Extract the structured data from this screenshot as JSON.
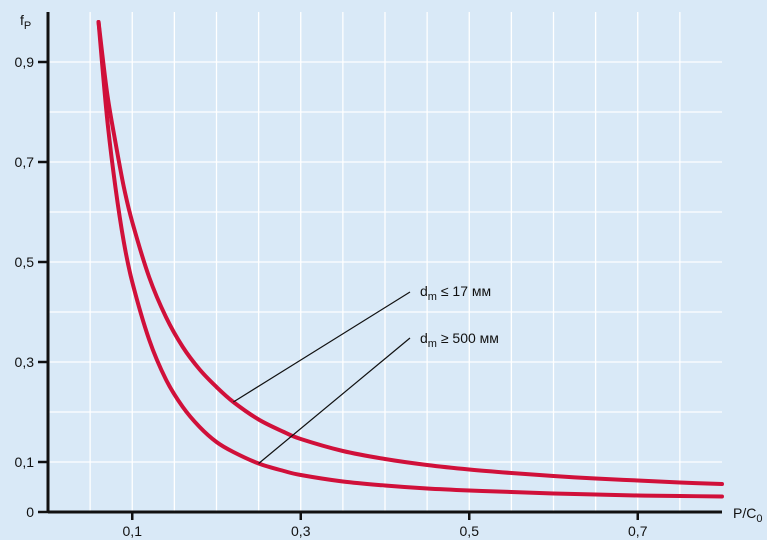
{
  "colors": {
    "background": "#d9e9f7",
    "grid": "#ffffff",
    "axis": "#111111",
    "curve": "#d0103a",
    "leader": "#111111"
  },
  "chart_data": {
    "type": "line",
    "title": "",
    "ylabel": {
      "main": "f",
      "sub": "P"
    },
    "xlabel": {
      "main": "P/C",
      "sub": "0"
    },
    "xlim": [
      0,
      0.8
    ],
    "ylim": [
      0,
      1.0
    ],
    "grid": true,
    "x_ticks": [
      {
        "value": 0.1,
        "label": "0,1"
      },
      {
        "value": 0.3,
        "label": "0,3"
      },
      {
        "value": 0.5,
        "label": "0,5"
      },
      {
        "value": 0.7,
        "label": "0,7"
      }
    ],
    "y_ticks": [
      {
        "value": 0.0,
        "label": "0"
      },
      {
        "value": 0.1,
        "label": "0,1"
      },
      {
        "value": 0.3,
        "label": "0,3"
      },
      {
        "value": 0.5,
        "label": "0,5"
      },
      {
        "value": 0.7,
        "label": "0,7"
      },
      {
        "value": 0.9,
        "label": "0,9"
      }
    ],
    "series": [
      {
        "label_main": "d",
        "label_sub": "m",
        "label_rest": " ≤ 17 мм",
        "x": [
          0.06,
          0.07,
          0.08,
          0.09,
          0.1,
          0.12,
          0.14,
          0.16,
          0.18,
          0.2,
          0.22,
          0.25,
          0.28,
          0.3,
          0.35,
          0.4,
          0.45,
          0.5,
          0.55,
          0.6,
          0.65,
          0.7,
          0.75,
          0.8
        ],
        "y": [
          0.98,
          0.84,
          0.74,
          0.65,
          0.58,
          0.47,
          0.39,
          0.33,
          0.285,
          0.25,
          0.22,
          0.185,
          0.16,
          0.146,
          0.122,
          0.106,
          0.094,
          0.085,
          0.078,
          0.072,
          0.067,
          0.063,
          0.059,
          0.056
        ]
      },
      {
        "label_main": "d",
        "label_sub": "m",
        "label_rest": " ≥ 500 мм",
        "x": [
          0.06,
          0.07,
          0.08,
          0.09,
          0.1,
          0.12,
          0.14,
          0.16,
          0.18,
          0.2,
          0.22,
          0.25,
          0.28,
          0.3,
          0.35,
          0.4,
          0.45,
          0.5,
          0.55,
          0.6,
          0.65,
          0.7,
          0.75,
          0.8
        ],
        "y": [
          0.98,
          0.79,
          0.65,
          0.54,
          0.46,
          0.345,
          0.265,
          0.21,
          0.17,
          0.14,
          0.12,
          0.097,
          0.082,
          0.074,
          0.061,
          0.053,
          0.047,
          0.043,
          0.04,
          0.037,
          0.035,
          0.033,
          0.032,
          0.031
        ]
      }
    ]
  }
}
